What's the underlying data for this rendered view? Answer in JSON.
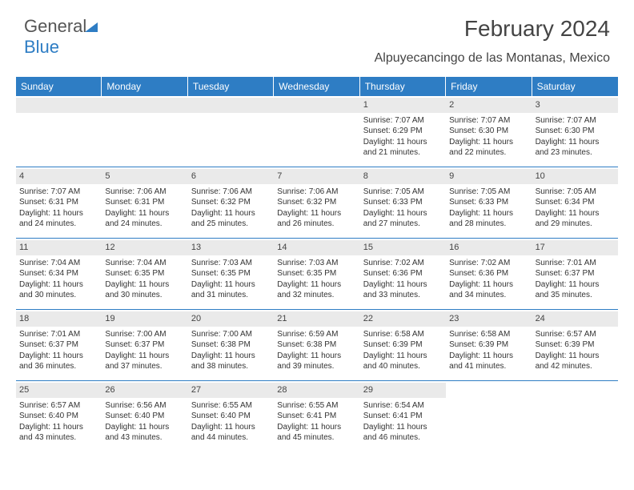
{
  "logo": {
    "text1": "General",
    "text2": "Blue"
  },
  "title": "February 2024",
  "subtitle": "Alpuyecancingo de las Montanas, Mexico",
  "colors": {
    "header_bg": "#2e7dc4",
    "header_fg": "#ffffff",
    "daynum_bg": "#eaeaea",
    "border": "#2e7dc4",
    "text": "#333333",
    "logo_gray": "#555555",
    "logo_blue": "#2e7dc4",
    "background": "#ffffff"
  },
  "typography": {
    "title_fontsize": 28,
    "subtitle_fontsize": 16,
    "header_fontsize": 12,
    "daynum_fontsize": 11,
    "body_fontsize": 10,
    "logo_fontsize": 22
  },
  "weekdays": [
    "Sunday",
    "Monday",
    "Tuesday",
    "Wednesday",
    "Thursday",
    "Friday",
    "Saturday"
  ],
  "weeks": [
    [
      null,
      null,
      null,
      null,
      {
        "num": "1",
        "sunrise": "Sunrise: 7:07 AM",
        "sunset": "Sunset: 6:29 PM",
        "daylight1": "Daylight: 11 hours",
        "daylight2": "and 21 minutes."
      },
      {
        "num": "2",
        "sunrise": "Sunrise: 7:07 AM",
        "sunset": "Sunset: 6:30 PM",
        "daylight1": "Daylight: 11 hours",
        "daylight2": "and 22 minutes."
      },
      {
        "num": "3",
        "sunrise": "Sunrise: 7:07 AM",
        "sunset": "Sunset: 6:30 PM",
        "daylight1": "Daylight: 11 hours",
        "daylight2": "and 23 minutes."
      }
    ],
    [
      {
        "num": "4",
        "sunrise": "Sunrise: 7:07 AM",
        "sunset": "Sunset: 6:31 PM",
        "daylight1": "Daylight: 11 hours",
        "daylight2": "and 24 minutes."
      },
      {
        "num": "5",
        "sunrise": "Sunrise: 7:06 AM",
        "sunset": "Sunset: 6:31 PM",
        "daylight1": "Daylight: 11 hours",
        "daylight2": "and 24 minutes."
      },
      {
        "num": "6",
        "sunrise": "Sunrise: 7:06 AM",
        "sunset": "Sunset: 6:32 PM",
        "daylight1": "Daylight: 11 hours",
        "daylight2": "and 25 minutes."
      },
      {
        "num": "7",
        "sunrise": "Sunrise: 7:06 AM",
        "sunset": "Sunset: 6:32 PM",
        "daylight1": "Daylight: 11 hours",
        "daylight2": "and 26 minutes."
      },
      {
        "num": "8",
        "sunrise": "Sunrise: 7:05 AM",
        "sunset": "Sunset: 6:33 PM",
        "daylight1": "Daylight: 11 hours",
        "daylight2": "and 27 minutes."
      },
      {
        "num": "9",
        "sunrise": "Sunrise: 7:05 AM",
        "sunset": "Sunset: 6:33 PM",
        "daylight1": "Daylight: 11 hours",
        "daylight2": "and 28 minutes."
      },
      {
        "num": "10",
        "sunrise": "Sunrise: 7:05 AM",
        "sunset": "Sunset: 6:34 PM",
        "daylight1": "Daylight: 11 hours",
        "daylight2": "and 29 minutes."
      }
    ],
    [
      {
        "num": "11",
        "sunrise": "Sunrise: 7:04 AM",
        "sunset": "Sunset: 6:34 PM",
        "daylight1": "Daylight: 11 hours",
        "daylight2": "and 30 minutes."
      },
      {
        "num": "12",
        "sunrise": "Sunrise: 7:04 AM",
        "sunset": "Sunset: 6:35 PM",
        "daylight1": "Daylight: 11 hours",
        "daylight2": "and 30 minutes."
      },
      {
        "num": "13",
        "sunrise": "Sunrise: 7:03 AM",
        "sunset": "Sunset: 6:35 PM",
        "daylight1": "Daylight: 11 hours",
        "daylight2": "and 31 minutes."
      },
      {
        "num": "14",
        "sunrise": "Sunrise: 7:03 AM",
        "sunset": "Sunset: 6:35 PM",
        "daylight1": "Daylight: 11 hours",
        "daylight2": "and 32 minutes."
      },
      {
        "num": "15",
        "sunrise": "Sunrise: 7:02 AM",
        "sunset": "Sunset: 6:36 PM",
        "daylight1": "Daylight: 11 hours",
        "daylight2": "and 33 minutes."
      },
      {
        "num": "16",
        "sunrise": "Sunrise: 7:02 AM",
        "sunset": "Sunset: 6:36 PM",
        "daylight1": "Daylight: 11 hours",
        "daylight2": "and 34 minutes."
      },
      {
        "num": "17",
        "sunrise": "Sunrise: 7:01 AM",
        "sunset": "Sunset: 6:37 PM",
        "daylight1": "Daylight: 11 hours",
        "daylight2": "and 35 minutes."
      }
    ],
    [
      {
        "num": "18",
        "sunrise": "Sunrise: 7:01 AM",
        "sunset": "Sunset: 6:37 PM",
        "daylight1": "Daylight: 11 hours",
        "daylight2": "and 36 minutes."
      },
      {
        "num": "19",
        "sunrise": "Sunrise: 7:00 AM",
        "sunset": "Sunset: 6:37 PM",
        "daylight1": "Daylight: 11 hours",
        "daylight2": "and 37 minutes."
      },
      {
        "num": "20",
        "sunrise": "Sunrise: 7:00 AM",
        "sunset": "Sunset: 6:38 PM",
        "daylight1": "Daylight: 11 hours",
        "daylight2": "and 38 minutes."
      },
      {
        "num": "21",
        "sunrise": "Sunrise: 6:59 AM",
        "sunset": "Sunset: 6:38 PM",
        "daylight1": "Daylight: 11 hours",
        "daylight2": "and 39 minutes."
      },
      {
        "num": "22",
        "sunrise": "Sunrise: 6:58 AM",
        "sunset": "Sunset: 6:39 PM",
        "daylight1": "Daylight: 11 hours",
        "daylight2": "and 40 minutes."
      },
      {
        "num": "23",
        "sunrise": "Sunrise: 6:58 AM",
        "sunset": "Sunset: 6:39 PM",
        "daylight1": "Daylight: 11 hours",
        "daylight2": "and 41 minutes."
      },
      {
        "num": "24",
        "sunrise": "Sunrise: 6:57 AM",
        "sunset": "Sunset: 6:39 PM",
        "daylight1": "Daylight: 11 hours",
        "daylight2": "and 42 minutes."
      }
    ],
    [
      {
        "num": "25",
        "sunrise": "Sunrise: 6:57 AM",
        "sunset": "Sunset: 6:40 PM",
        "daylight1": "Daylight: 11 hours",
        "daylight2": "and 43 minutes."
      },
      {
        "num": "26",
        "sunrise": "Sunrise: 6:56 AM",
        "sunset": "Sunset: 6:40 PM",
        "daylight1": "Daylight: 11 hours",
        "daylight2": "and 43 minutes."
      },
      {
        "num": "27",
        "sunrise": "Sunrise: 6:55 AM",
        "sunset": "Sunset: 6:40 PM",
        "daylight1": "Daylight: 11 hours",
        "daylight2": "and 44 minutes."
      },
      {
        "num": "28",
        "sunrise": "Sunrise: 6:55 AM",
        "sunset": "Sunset: 6:41 PM",
        "daylight1": "Daylight: 11 hours",
        "daylight2": "and 45 minutes."
      },
      {
        "num": "29",
        "sunrise": "Sunrise: 6:54 AM",
        "sunset": "Sunset: 6:41 PM",
        "daylight1": "Daylight: 11 hours",
        "daylight2": "and 46 minutes."
      },
      null,
      null
    ]
  ]
}
